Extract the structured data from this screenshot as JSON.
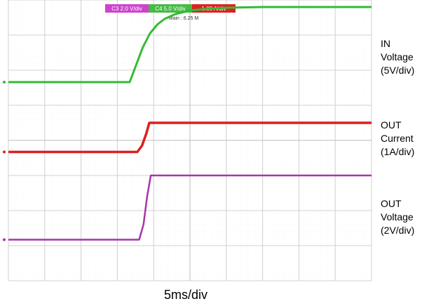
{
  "chart_data": {
    "type": "line",
    "title": "",
    "xlabel": "5ms/div",
    "ylabel": "",
    "grid": true,
    "x_unit": "div",
    "y_unit": "div",
    "xlim": [
      0,
      10
    ],
    "ylim": [
      0,
      8
    ],
    "header": {
      "timebase": "Main : 6.25 M",
      "channel_boxes": [
        {
          "text": "C3 2.0 V/div",
          "color": "#cc44cc"
        },
        {
          "text": "C4 5.0 V/div",
          "color": "#44bb44"
        },
        {
          "text": "1.00 A/div",
          "color": "#dd2222"
        }
      ]
    },
    "series": [
      {
        "name": "IN Voltage (5V/div)",
        "label_lines": [
          "IN",
          "Voltage",
          "(5V/div)"
        ],
        "color": "#33bb33",
        "x": [
          0,
          3.34,
          3.5,
          3.7,
          3.9,
          4.1,
          4.3,
          4.6,
          5.0,
          5.5,
          6.0,
          7.0,
          8.0,
          9.0,
          10.0
        ],
        "y": [
          5.66,
          5.66,
          6.1,
          6.65,
          7.05,
          7.3,
          7.46,
          7.6,
          7.7,
          7.75,
          7.78,
          7.8,
          7.8,
          7.8,
          7.8
        ]
      },
      {
        "name": "OUT Current (1A/div)",
        "label_lines": [
          "OUT",
          "Current",
          "(1A/div)"
        ],
        "color": "#dd1f1f",
        "x": [
          0,
          3.55,
          3.68,
          3.8,
          3.88,
          4.0,
          5.0,
          6.0,
          7.0,
          8.0,
          9.0,
          10.0
        ],
        "y": [
          3.67,
          3.67,
          3.85,
          4.2,
          4.5,
          4.5,
          4.5,
          4.5,
          4.5,
          4.5,
          4.5,
          4.5
        ]
      },
      {
        "name": "OUT Voltage (2V/div)",
        "label_lines": [
          "OUT",
          "Voltage",
          "(2V/div)"
        ],
        "color": "#aa33aa",
        "x": [
          0,
          3.6,
          3.72,
          3.82,
          3.92,
          4.0,
          5.0,
          6.0,
          7.0,
          8.0,
          9.0,
          10.0
        ],
        "y": [
          1.17,
          1.17,
          1.6,
          2.4,
          3.0,
          3.0,
          3.0,
          3.0,
          3.0,
          3.0,
          3.0,
          3.0
        ]
      }
    ]
  }
}
